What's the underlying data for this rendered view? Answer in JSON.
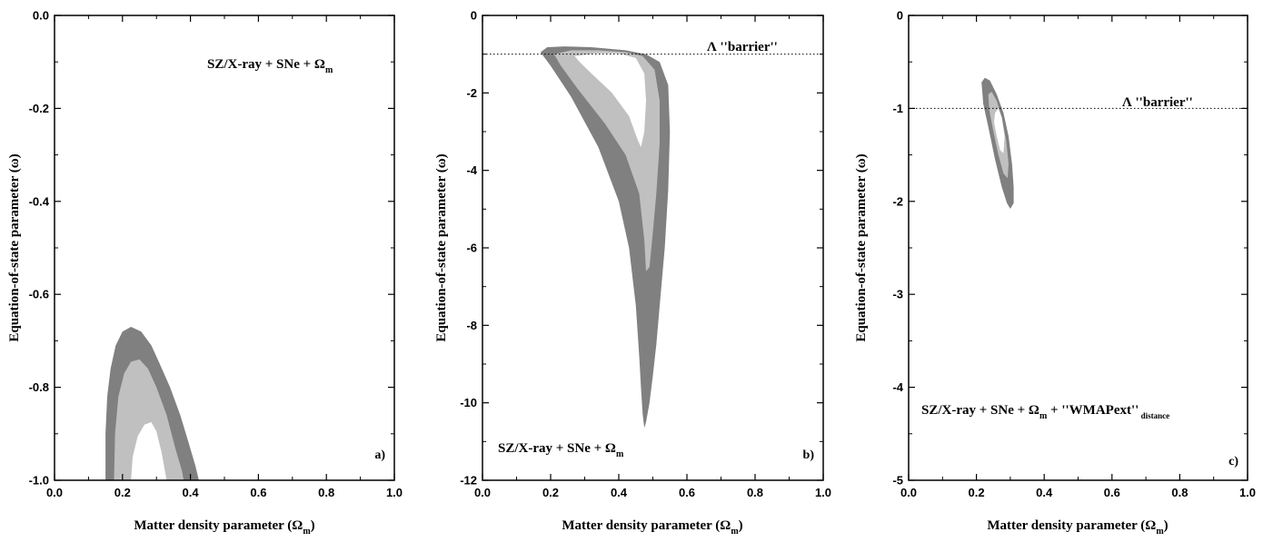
{
  "chart_data": [
    {
      "type": "area",
      "panel_label": "a)",
      "xlabel": "Matter density parameter (Ω",
      "xlabel_sub": "m",
      "ylabel": "Equation-of-state parameter (ω)",
      "xlim": [
        0.0,
        1.0
      ],
      "ylim": [
        -1.0,
        0.0
      ],
      "xticks": [
        0.0,
        0.2,
        0.4,
        0.6,
        0.8,
        1.0
      ],
      "xtick_labels": [
        "0.0",
        "0.2",
        "0.4",
        "0.6",
        "0.8",
        "1.0"
      ],
      "yticks": [
        -1.0,
        -0.8,
        -0.6,
        -0.4,
        -0.2,
        0.0
      ],
      "ytick_labels": [
        "-1.0",
        "-0.8",
        "-0.6",
        "-0.4",
        "-0.2",
        "0.0"
      ],
      "annotation": {
        "text": "SZ/X-ray + SNe + Ω",
        "sub": "m",
        "suffix": ""
      },
      "contours": [
        {
          "level": "outer",
          "color": "#808080",
          "points": [
            [
              0.15,
              -1.0
            ],
            [
              0.15,
              -0.9
            ],
            [
              0.155,
              -0.82
            ],
            [
              0.165,
              -0.76
            ],
            [
              0.18,
              -0.71
            ],
            [
              0.2,
              -0.68
            ],
            [
              0.225,
              -0.67
            ],
            [
              0.255,
              -0.68
            ],
            [
              0.285,
              -0.71
            ],
            [
              0.31,
              -0.75
            ],
            [
              0.34,
              -0.8
            ],
            [
              0.37,
              -0.86
            ],
            [
              0.395,
              -0.92
            ],
            [
              0.415,
              -0.97
            ],
            [
              0.425,
              -1.0
            ]
          ]
        },
        {
          "level": "middle",
          "color": "#c0c0c0",
          "points": [
            [
              0.175,
              -1.0
            ],
            [
              0.178,
              -0.9
            ],
            [
              0.188,
              -0.82
            ],
            [
              0.205,
              -0.77
            ],
            [
              0.225,
              -0.745
            ],
            [
              0.25,
              -0.74
            ],
            [
              0.275,
              -0.76
            ],
            [
              0.3,
              -0.8
            ],
            [
              0.33,
              -0.86
            ],
            [
              0.355,
              -0.93
            ],
            [
              0.375,
              -0.98
            ],
            [
              0.38,
              -1.0
            ]
          ]
        },
        {
          "level": "inner",
          "color": "#ffffff",
          "points": [
            [
              0.225,
              -1.0
            ],
            [
              0.23,
              -0.95
            ],
            [
              0.245,
              -0.905
            ],
            [
              0.265,
              -0.88
            ],
            [
              0.285,
              -0.875
            ],
            [
              0.3,
              -0.895
            ],
            [
              0.315,
              -0.94
            ],
            [
              0.33,
              -1.0
            ]
          ]
        }
      ]
    },
    {
      "type": "area",
      "panel_label": "b)",
      "xlabel": "Matter density parameter (Ω",
      "xlabel_sub": "m",
      "ylabel": "Equation-of-state parameter (ω)",
      "xlim": [
        0.0,
        1.0
      ],
      "ylim": [
        -12,
        0
      ],
      "xticks": [
        0.0,
        0.2,
        0.4,
        0.6,
        0.8,
        1.0
      ],
      "xtick_labels": [
        "0.0",
        "0.2",
        "0.4",
        "0.6",
        "0.8",
        "1.0"
      ],
      "yticks": [
        -12,
        -10,
        -8,
        -6,
        -4,
        -2,
        0
      ],
      "ytick_labels": [
        "-12",
        "-10",
        "-8",
        "-6",
        "-4",
        "-2",
        "0"
      ],
      "annotation": {
        "text": "SZ/X-ray + SNe + Ω",
        "sub": "m",
        "suffix": ""
      },
      "barrier": {
        "y": -1,
        "label_symbol": "Λ",
        "label_text": "''barrier''"
      },
      "contours": [
        {
          "level": "outer",
          "color": "#808080",
          "points": [
            [
              0.17,
              -0.95
            ],
            [
              0.19,
              -0.82
            ],
            [
              0.24,
              -0.8
            ],
            [
              0.32,
              -0.82
            ],
            [
              0.42,
              -0.9
            ],
            [
              0.48,
              -1.0
            ],
            [
              0.52,
              -1.2
            ],
            [
              0.545,
              -1.8
            ],
            [
              0.55,
              -3
            ],
            [
              0.545,
              -4.5
            ],
            [
              0.535,
              -6
            ],
            [
              0.52,
              -7.5
            ],
            [
              0.51,
              -8.5
            ],
            [
              0.5,
              -9.3
            ],
            [
              0.49,
              -10
            ],
            [
              0.48,
              -10.5
            ],
            [
              0.475,
              -10.65
            ],
            [
              0.47,
              -10.3
            ],
            [
              0.465,
              -9.6
            ],
            [
              0.46,
              -8.8
            ],
            [
              0.45,
              -7.5
            ],
            [
              0.43,
              -6
            ],
            [
              0.4,
              -4.8
            ],
            [
              0.34,
              -3.4
            ],
            [
              0.26,
              -2.1
            ],
            [
              0.2,
              -1.3
            ]
          ]
        },
        {
          "level": "middle",
          "color": "#c0c0c0",
          "points": [
            [
              0.21,
              -1.0
            ],
            [
              0.26,
              -0.9
            ],
            [
              0.34,
              -0.9
            ],
            [
              0.42,
              -0.95
            ],
            [
              0.47,
              -1.05
            ],
            [
              0.505,
              -1.4
            ],
            [
              0.52,
              -2.2
            ],
            [
              0.52,
              -3.3
            ],
            [
              0.51,
              -4.6
            ],
            [
              0.5,
              -5.6
            ],
            [
              0.49,
              -6.5
            ],
            [
              0.48,
              -6.6
            ],
            [
              0.475,
              -5.8
            ],
            [
              0.46,
              -4.6
            ],
            [
              0.42,
              -3.6
            ],
            [
              0.36,
              -2.8
            ],
            [
              0.28,
              -1.9
            ],
            [
              0.23,
              -1.3
            ]
          ]
        },
        {
          "level": "inner",
          "color": "#ffffff",
          "points": [
            [
              0.27,
              -1.05
            ],
            [
              0.33,
              -0.98
            ],
            [
              0.4,
              -0.98
            ],
            [
              0.45,
              -1.1
            ],
            [
              0.475,
              -1.5
            ],
            [
              0.48,
              -2.2
            ],
            [
              0.475,
              -3.0
            ],
            [
              0.465,
              -3.4
            ],
            [
              0.455,
              -3.2
            ],
            [
              0.43,
              -2.6
            ],
            [
              0.38,
              -2.0
            ],
            [
              0.32,
              -1.5
            ],
            [
              0.285,
              -1.2
            ]
          ]
        }
      ]
    },
    {
      "type": "area",
      "panel_label": "c)",
      "xlabel": "Matter density parameter (Ω",
      "xlabel_sub": "m",
      "ylabel": "Equation-of-state parameter (ω)",
      "xlim": [
        0.0,
        1.0
      ],
      "ylim": [
        -5,
        0
      ],
      "xticks": [
        0.0,
        0.2,
        0.4,
        0.6,
        0.8,
        1.0
      ],
      "xtick_labels": [
        "0.0",
        "0.2",
        "0.4",
        "0.6",
        "0.8",
        "1.0"
      ],
      "yticks": [
        -5,
        -4,
        -3,
        -2,
        -1,
        0
      ],
      "ytick_labels": [
        "-5",
        "-4",
        "-3",
        "-2",
        "-1",
        "0"
      ],
      "annotation": {
        "text": "SZ/X-ray + SNe + Ω",
        "sub": "m",
        "suffix": " + ''WMAPext''",
        "suffix_sub": "distance"
      },
      "barrier": {
        "y": -1,
        "label_symbol": "Λ",
        "label_text": "''barrier''"
      },
      "contours": [
        {
          "level": "outer",
          "color": "#808080",
          "points": [
            [
              0.215,
              -0.72
            ],
            [
              0.225,
              -0.67
            ],
            [
              0.24,
              -0.7
            ],
            [
              0.26,
              -0.85
            ],
            [
              0.28,
              -1.05
            ],
            [
              0.295,
              -1.3
            ],
            [
              0.305,
              -1.6
            ],
            [
              0.31,
              -1.85
            ],
            [
              0.31,
              -2.02
            ],
            [
              0.3,
              -2.08
            ],
            [
              0.29,
              -2.02
            ],
            [
              0.275,
              -1.85
            ],
            [
              0.255,
              -1.55
            ],
            [
              0.235,
              -1.2
            ],
            [
              0.22,
              -0.95
            ]
          ]
        },
        {
          "level": "middle",
          "color": "#c0c0c0",
          "points": [
            [
              0.235,
              -0.85
            ],
            [
              0.245,
              -0.82
            ],
            [
              0.26,
              -0.92
            ],
            [
              0.275,
              -1.1
            ],
            [
              0.288,
              -1.35
            ],
            [
              0.295,
              -1.6
            ],
            [
              0.292,
              -1.75
            ],
            [
              0.28,
              -1.7
            ],
            [
              0.265,
              -1.5
            ],
            [
              0.25,
              -1.25
            ],
            [
              0.238,
              -1.02
            ]
          ]
        },
        {
          "level": "inner",
          "color": "#ffffff",
          "points": [
            [
              0.255,
              -1.05
            ],
            [
              0.265,
              -1.0
            ],
            [
              0.275,
              -1.1
            ],
            [
              0.283,
              -1.3
            ],
            [
              0.28,
              -1.48
            ],
            [
              0.27,
              -1.45
            ],
            [
              0.26,
              -1.3
            ],
            [
              0.252,
              -1.15
            ]
          ]
        }
      ]
    }
  ]
}
